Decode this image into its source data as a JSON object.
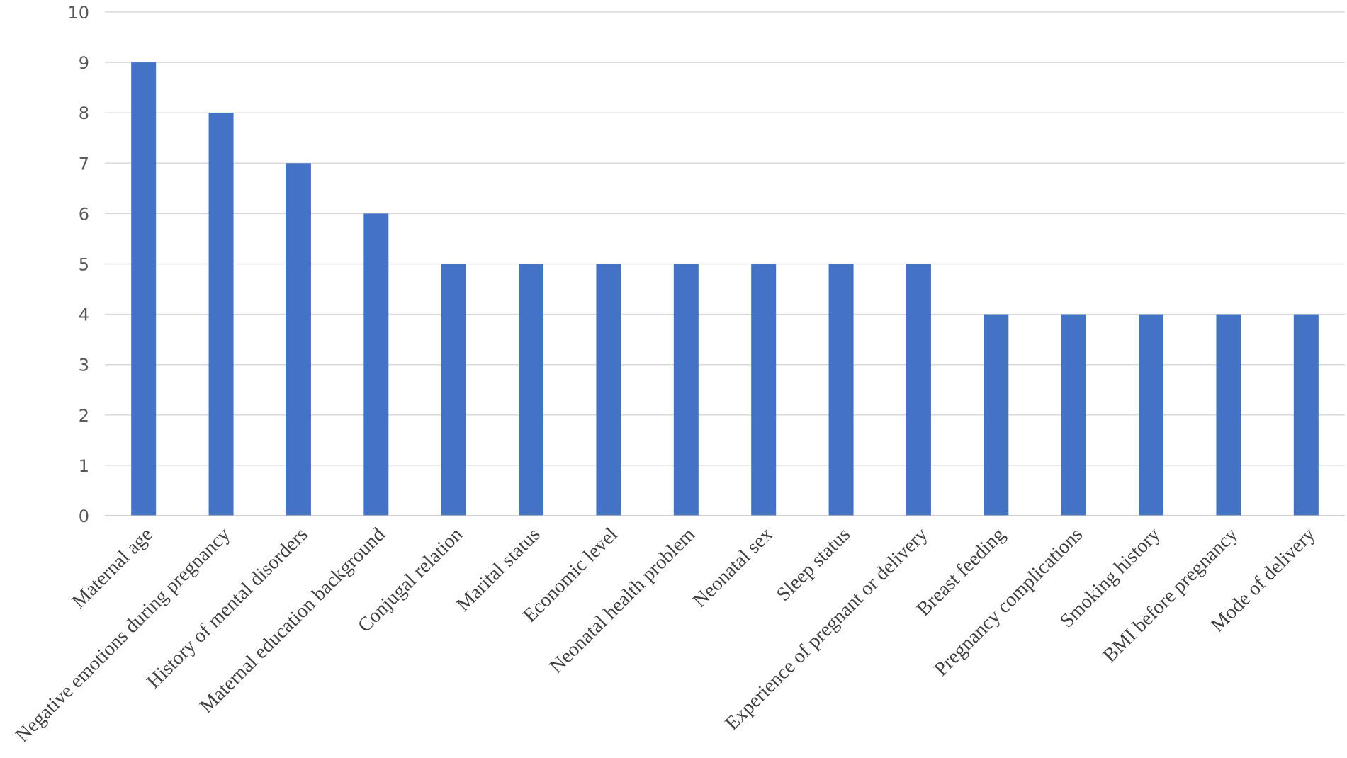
{
  "chart_data": {
    "type": "bar",
    "title": "",
    "xlabel": "",
    "ylabel": "",
    "ylim": [
      0,
      10
    ],
    "yticks": [
      0,
      1,
      2,
      3,
      4,
      5,
      6,
      7,
      8,
      9,
      10
    ],
    "grid": true,
    "legend": "none",
    "bar_color": "#4472C4",
    "categories": [
      "Maternal age",
      "Negative emotions during pregnancy",
      "History of mental disorders",
      "Maternal education background",
      "Conjugal relation",
      "Marital status",
      "Economic level",
      "Neonatal health problem",
      "Neonatal sex",
      "Sleep status",
      "Experience of pregnant or delivery",
      "Breast feeding",
      "Pregnancy complications",
      "Smoking history",
      "BMI before pregnancy",
      "Mode of delivery"
    ],
    "values": [
      9,
      8,
      7,
      6,
      5,
      5,
      5,
      5,
      5,
      5,
      5,
      4,
      4,
      4,
      4,
      4
    ]
  }
}
